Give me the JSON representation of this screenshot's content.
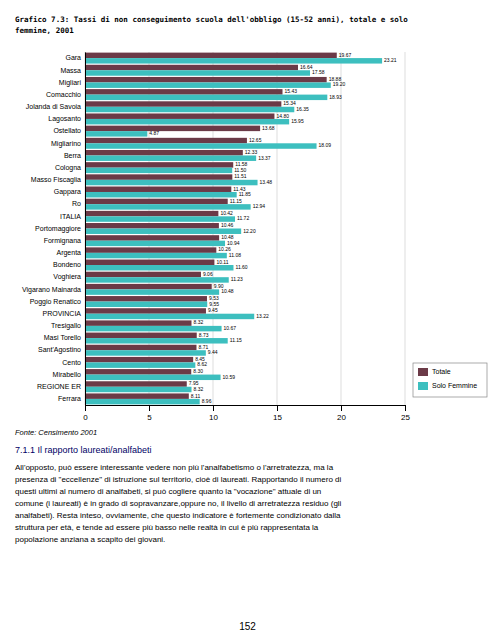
{
  "chart_data": {
    "type": "bar",
    "orientation": "horizontal",
    "title": "Grafico 7.3: Tassi di non conseguimento scuola dell'obbligo (15-52 anni), totale e solo\nfemmine, 2001",
    "categories": [
      "Gara",
      "Massa",
      "Migliari",
      "Comacchio",
      "Jolanda di Savoia",
      "Lagosanto",
      "Ostellato",
      "Migliarino",
      "Berra",
      "Cologna",
      "Masso Fiscaglia",
      "Gappara",
      "Ro",
      "ITALIA",
      "Portomaggiore",
      "Formignana",
      "Argenta",
      "Bondeno",
      "Voghiera",
      "Vigarano Mainarda",
      "Poggio Renatico",
      "PROVINCIA",
      "Tresigallo",
      "Masi Torello",
      "Sant'Agostino",
      "Cento",
      "Mirabello",
      "REGIONE ER",
      "Ferrara"
    ],
    "series": [
      {
        "name": "Totale",
        "color": "#6b3a47",
        "values": [
          19.67,
          16.64,
          18.88,
          15.43,
          15.34,
          14.8,
          13.68,
          12.65,
          12.33,
          11.58,
          11.51,
          11.43,
          11.15,
          10.42,
          10.46,
          10.48,
          10.26,
          10.11,
          9.06,
          9.9,
          9.53,
          9.45,
          8.32,
          8.73,
          8.71,
          8.45,
          8.3,
          7.95,
          8.11
        ],
        "value_labels": [
          "19.67",
          "16.64",
          "18.88",
          "15.43",
          "15.34",
          "14.80",
          "13.68",
          "12.65",
          "12.33",
          "11.58",
          "11.51",
          "11.43",
          "11.15",
          "10.42",
          "10.46",
          "10.48",
          "10.26",
          "10.11",
          "9.06",
          "9.90",
          "9.53",
          "9.45",
          "8.32",
          "8.73",
          "8.71",
          "8.45",
          "8.30",
          "7.95",
          "8.11"
        ]
      },
      {
        "name": "Solo Femmine",
        "color": "#3dbfbf",
        "values": [
          23.21,
          17.58,
          19.2,
          18.93,
          16.35,
          15.95,
          4.87,
          18.09,
          13.37,
          11.5,
          13.48,
          11.85,
          12.94,
          11.72,
          12.2,
          10.94,
          11.08,
          11.6,
          11.23,
          10.48,
          9.55,
          13.22,
          10.67,
          11.15,
          9.44,
          8.62,
          10.59,
          8.32,
          8.96
        ],
        "value_labels": [
          "23.21",
          "17.58",
          "19.20",
          "18.93",
          "16.35",
          "15.95",
          "4.87",
          "18.09",
          "13.37",
          "11.50",
          "13.48",
          "11.85",
          "12.94",
          "11.72",
          "12.20",
          "10.94",
          "11.08",
          "11.60",
          "11.23",
          "10.48",
          "9.55",
          "13.22",
          "10.67",
          "11.15",
          "9.44",
          "8.62",
          "10.59",
          "8.32",
          "8.96"
        ]
      }
    ],
    "xlim": [
      0,
      25
    ],
    "xticks": [
      0,
      5,
      10,
      15,
      20,
      25
    ],
    "grid": true,
    "legend": "lower right",
    "data_labels": true,
    "annotations": [
      "Fonte: Censimento 2001",
      "7.1.1 Il rapporto laureati/analfabeti",
      "All'opposto, può essere interessante vedere non più l'analfabetismo o l'arretratezza, ma la",
      "presenza di \"eccellenze\" di istruzione sul territorio, cioè di laureati. Rapportando il numero di",
      "questi ultimi al numero di analfabeti, si può cogliere quanto la \"vocazione\" attuale di un",
      "comune (i laureati) è in grado di sopravanzare,oppure no, il livello di arretratezza residuo (gli",
      "analfabeti). Resta inteso, ovviamente, che questo indicatore è fortemente condizionato dalla",
      "struttura per età, e tende ad essere più basso nelle realtà in cui è più rappresentata la",
      "popolazione anziana a scapito dei giovani.",
      "152"
    ]
  }
}
